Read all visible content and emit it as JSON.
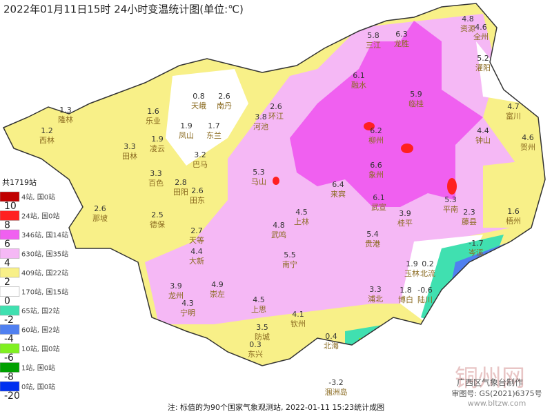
{
  "title": "2022年01月11日15时  24小时变温统计图(单位:℃)",
  "legend": {
    "total": "共1719站",
    "items": [
      {
        "color": "#c00000",
        "count": "4站, 国0站",
        "threshold": 10
      },
      {
        "color": "#ff2020",
        "count": "24站, 国0站",
        "threshold": 8
      },
      {
        "color": "#f060f0",
        "count": "346站, 国14站",
        "threshold": 6
      },
      {
        "color": "#f5b8f5",
        "count": "630站, 国35站",
        "threshold": 4
      },
      {
        "color": "#f8f088",
        "count": "409站, 国22站",
        "threshold": 2
      },
      {
        "color": "#ffffff",
        "count": "170站, 国15站",
        "threshold": 0
      },
      {
        "color": "#40e0b0",
        "count": "65站, 国2站",
        "threshold": -2
      },
      {
        "color": "#5080f0",
        "count": "60站, 国2站",
        "threshold": -4
      },
      {
        "color": "#80f020",
        "count": "10站, 国0站",
        "threshold": -6
      },
      {
        "color": "#00a000",
        "count": "1站, 国0站",
        "threshold": -8
      },
      {
        "color": "#0030f0",
        "count": "0站, 国0站",
        "threshold": -20
      }
    ]
  },
  "stations": [
    {
      "name": "隆林",
      "value": 1.3
    },
    {
      "name": "西林",
      "value": 1.2
    },
    {
      "name": "田林",
      "value": 3.3
    },
    {
      "name": "乐业",
      "value": 1.6
    },
    {
      "name": "天峨",
      "value": 0.8
    },
    {
      "name": "南丹",
      "value": 2.6
    },
    {
      "name": "凤山",
      "value": 1.9
    },
    {
      "name": "东兰",
      "value": 1.7
    },
    {
      "name": "凌云",
      "value": 1.9
    },
    {
      "name": "河池",
      "value": 3.8
    },
    {
      "name": "环江",
      "value": 2.6
    },
    {
      "name": "百色",
      "value": 3.3
    },
    {
      "name": "巴马",
      "value": 3.2
    },
    {
      "name": "田阳",
      "value": 2.8
    },
    {
      "name": "田东",
      "value": 2.6
    },
    {
      "name": "那坡",
      "value": 2.6
    },
    {
      "name": "德保",
      "value": 2.5
    },
    {
      "name": "天等",
      "value": 2.7
    },
    {
      "name": "大新",
      "value": 4.4
    },
    {
      "name": "崇左",
      "value": 4.9
    },
    {
      "name": "龙州",
      "value": 3.9
    },
    {
      "name": "宁明",
      "value": 4.3
    },
    {
      "name": "武鸣",
      "value": 4.8
    },
    {
      "name": "南宁",
      "value": 5.5
    },
    {
      "name": "上林",
      "value": 4.5
    },
    {
      "name": "马山",
      "value": 5.3
    },
    {
      "name": "融水",
      "value": 6.1
    },
    {
      "name": "三江",
      "value": 5.8
    },
    {
      "name": "龙胜",
      "value": 6.3
    },
    {
      "name": "资源",
      "value": 4.8
    },
    {
      "name": "全州",
      "value": 4.6
    },
    {
      "name": "灌阳",
      "value": 5.2
    },
    {
      "name": "临桂",
      "value": 5.9
    },
    {
      "name": "柳州",
      "value": 6.2
    },
    {
      "name": "象州",
      "value": 6.6
    },
    {
      "name": "来宾",
      "value": 6.4
    },
    {
      "name": "钟山",
      "value": 4.4
    },
    {
      "name": "贺州",
      "value": 4.6
    },
    {
      "name": "富川",
      "value": 4.7
    },
    {
      "name": "平南",
      "value": 5.3
    },
    {
      "name": "藤县",
      "value": 2.3
    },
    {
      "name": "梧州",
      "value": 1.6
    },
    {
      "name": "岑溪",
      "value": -1.7
    },
    {
      "name": "玉林",
      "value": 1.9
    },
    {
      "name": "北流",
      "value": 0.2
    },
    {
      "name": "陆川",
      "value": -0.6
    },
    {
      "name": "博白",
      "value": 1.8
    },
    {
      "name": "浦北",
      "value": 3.3
    },
    {
      "name": "钦州",
      "value": 4.1
    },
    {
      "name": "上思",
      "value": 4.5
    },
    {
      "name": "防城",
      "value": 3.5
    },
    {
      "name": "东兴",
      "value": 0.3
    },
    {
      "name": "北海",
      "value": 0.4
    },
    {
      "name": "涠洲岛",
      "value": -3.2
    },
    {
      "name": "贵港",
      "value": 5.4
    },
    {
      "name": "桂平",
      "value": 3.9
    },
    {
      "name": "武宣",
      "value": 6.1
    }
  ],
  "footer": "注: 标值的为90个国家气象观测站, 2022-01-11 15:23统计成图",
  "credits": {
    "producer": "广西区气象台制作",
    "review": "审图号: GS(2021)6375号",
    "watermark": "铜州网",
    "site": "www.bltzw.com"
  }
}
